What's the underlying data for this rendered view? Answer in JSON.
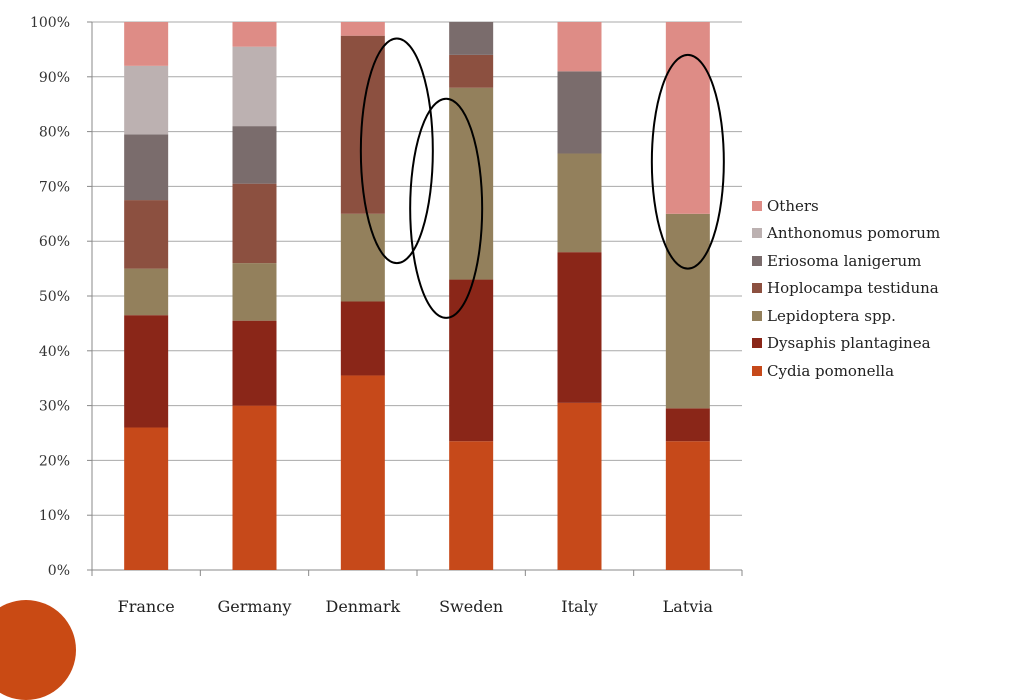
{
  "chart_data": {
    "type": "bar",
    "stacked": true,
    "percent": true,
    "categories": [
      "France",
      "Germany",
      "Denmark",
      "Sweden",
      "Italy",
      "Latvia"
    ],
    "series": [
      {
        "name": "Cydia pomonella",
        "color": "#c6491a",
        "values": [
          26,
          30,
          35.5,
          23.5,
          30.5,
          23.5
        ]
      },
      {
        "name": "Dysaphis plantaginea",
        "color": "#8a2618",
        "values": [
          20.5,
          15.5,
          13.5,
          29.5,
          27.5,
          6
        ]
      },
      {
        "name": "Lepidoptera spp.",
        "color": "#93805c",
        "values": [
          8.5,
          10.5,
          16,
          35,
          18,
          35.5
        ]
      },
      {
        "name": "Hoplocampa testiduna",
        "color": "#8c5040",
        "values": [
          12.5,
          14.5,
          32.5,
          6,
          0,
          0
        ]
      },
      {
        "name": "Eriosoma lanigerum",
        "color": "#7a6c6c",
        "values": [
          12,
          10.5,
          0,
          6,
          15,
          0
        ]
      },
      {
        "name": "Anthonomus pomorum",
        "color": "#bcb1b1",
        "values": [
          12.5,
          14.5,
          0,
          0,
          0,
          0
        ]
      },
      {
        "name": "Others",
        "color": "#de8c86",
        "values": [
          8,
          4.5,
          2.5,
          0,
          9,
          35
        ]
      }
    ],
    "y_ticks": [
      "0%",
      "10%",
      "20%",
      "30%",
      "40%",
      "50%",
      "60%",
      "70%",
      "80%",
      "90%",
      "100%"
    ],
    "ylim": [
      0,
      100
    ],
    "grid": true,
    "legend_position": "right",
    "legend_order": [
      "Others",
      "Anthonomus pomorum",
      "Eriosoma lanigerum",
      "Hoplocampa testiduna",
      "Lepidoptera spp.",
      "Dysaphis plantaginea",
      "Cydia pomonella"
    ],
    "annotations": [
      {
        "type": "ellipse",
        "category": "Denmark",
        "y_range": [
          56,
          97
        ]
      },
      {
        "type": "ellipse",
        "category": "Sweden",
        "y_range": [
          46,
          86
        ]
      },
      {
        "type": "ellipse",
        "category": "Latvia",
        "y_range": [
          55,
          94
        ]
      }
    ]
  }
}
